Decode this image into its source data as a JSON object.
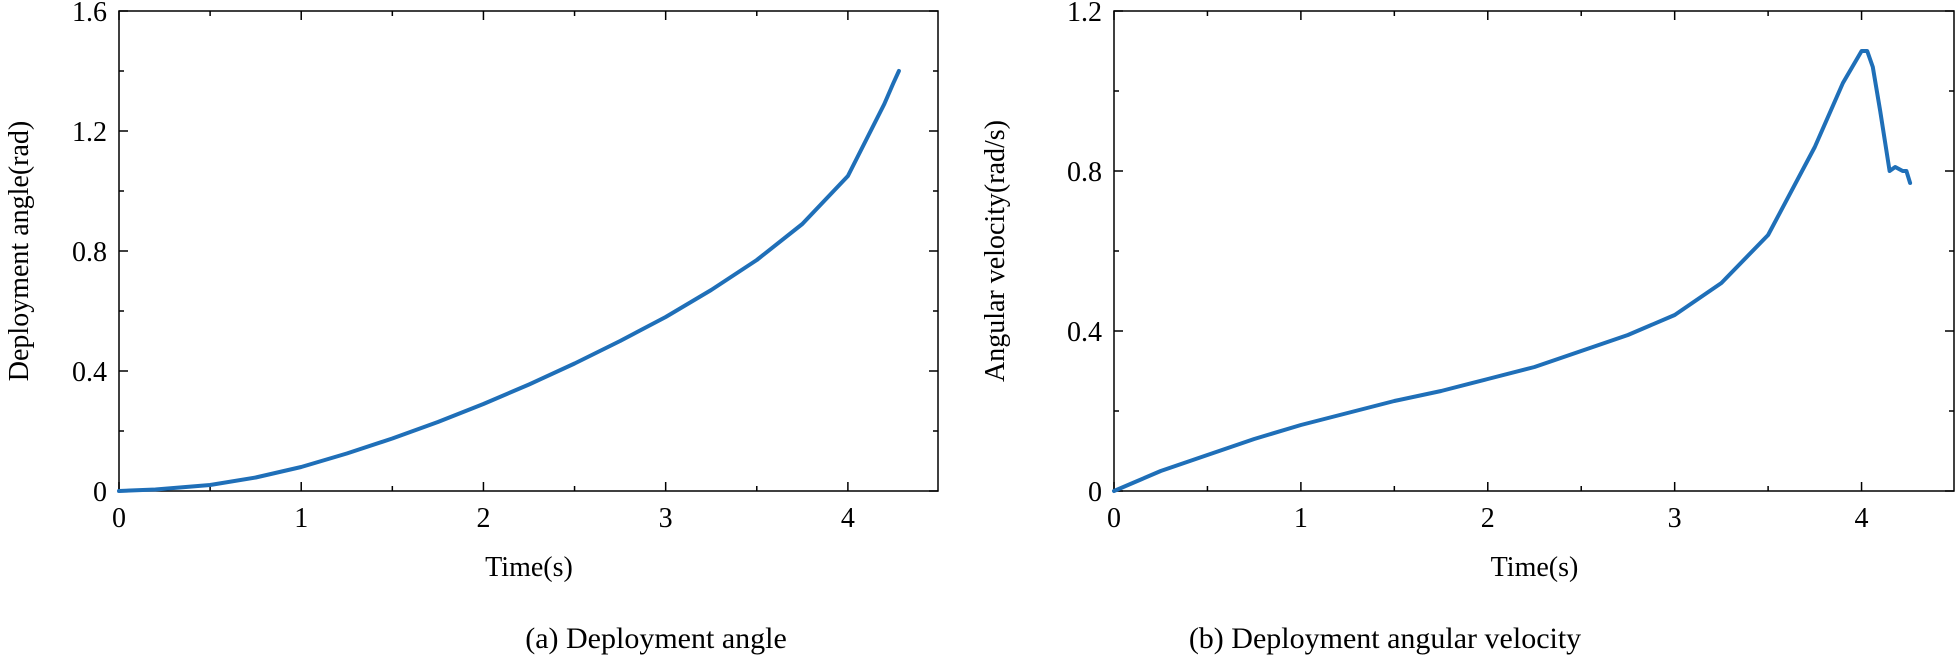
{
  "colors": {
    "line": "#1f6fb8",
    "axes": "#000000"
  },
  "chart_data": [
    {
      "type": "line",
      "caption": "(a) Deployment angle",
      "title": "",
      "xlabel": "Time(s)",
      "ylabel": "Deployment angle(rad)",
      "xlim": [
        0,
        4.5
      ],
      "ylim": [
        0,
        1.6
      ],
      "xticks": [
        0,
        1,
        2,
        3,
        4
      ],
      "xtick_labels": [
        "0",
        "1",
        "2",
        "3",
        "4"
      ],
      "minor_xticks": [
        0.5,
        1.5,
        2.5,
        3.5
      ],
      "yticks": [
        0,
        0.4,
        0.8,
        1.2,
        1.6
      ],
      "ytick_labels": [
        "0",
        "0.4",
        "0.8",
        "1.2",
        "1.6"
      ],
      "minor_yticks": [
        0.2,
        0.6,
        1.0,
        1.4
      ],
      "grid": false,
      "series": [
        {
          "x": [
            0,
            0.2,
            0.5,
            0.75,
            1.0,
            1.25,
            1.5,
            1.75,
            2.0,
            2.25,
            2.5,
            2.75,
            3.0,
            3.25,
            3.5,
            3.75,
            4.0,
            4.1,
            4.2,
            4.25,
            4.28
          ],
          "y": [
            0,
            0.005,
            0.02,
            0.045,
            0.08,
            0.125,
            0.175,
            0.23,
            0.29,
            0.355,
            0.425,
            0.5,
            0.58,
            0.67,
            0.77,
            0.89,
            1.05,
            1.17,
            1.29,
            1.36,
            1.4
          ]
        }
      ]
    },
    {
      "type": "line",
      "caption": "(b) Deployment angular velocity",
      "title": "",
      "xlabel": "Time(s)",
      "ylabel": "Angular velocity(rad/s)",
      "xlim": [
        0,
        4.5
      ],
      "ylim": [
        0,
        1.2
      ],
      "xticks": [
        0,
        1,
        2,
        3,
        4
      ],
      "xtick_labels": [
        "0",
        "1",
        "2",
        "3",
        "4"
      ],
      "minor_xticks": [
        0.5,
        1.5,
        2.5,
        3.5
      ],
      "yticks": [
        0,
        0.4,
        0.8,
        1.2
      ],
      "ytick_labels": [
        "0",
        "0.4",
        "0.8",
        "1.2"
      ],
      "minor_yticks": [
        0.2,
        0.6,
        1.0
      ],
      "grid": false,
      "series": [
        {
          "x": [
            0,
            0.1,
            0.25,
            0.5,
            0.75,
            1.0,
            1.25,
            1.5,
            1.75,
            2.0,
            2.25,
            2.5,
            2.75,
            3.0,
            3.25,
            3.5,
            3.75,
            3.9,
            4.0,
            4.03,
            4.06,
            4.1,
            4.15,
            4.18,
            4.22,
            4.24,
            4.26
          ],
          "y": [
            0,
            0.02,
            0.05,
            0.09,
            0.13,
            0.165,
            0.195,
            0.225,
            0.25,
            0.28,
            0.31,
            0.35,
            0.39,
            0.44,
            0.52,
            0.64,
            0.86,
            1.02,
            1.1,
            1.1,
            1.06,
            0.95,
            0.8,
            0.81,
            0.8,
            0.8,
            0.77
          ]
        }
      ]
    }
  ]
}
